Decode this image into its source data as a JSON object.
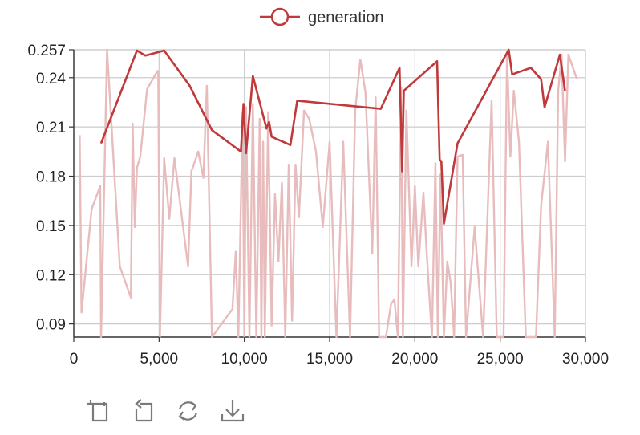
{
  "chart_data": {
    "type": "line",
    "title": "",
    "xlabel": "",
    "ylabel": "",
    "xlim": [
      0,
      30000
    ],
    "ylim": [
      0.082,
      0.257
    ],
    "x_ticks": [
      "0",
      "5,000",
      "10,000",
      "15,000",
      "20,000",
      "25,000",
      "30,000"
    ],
    "y_ticks": [
      "0.09",
      "0.12",
      "0.15",
      "0.18",
      "0.21",
      "0.24",
      "0.257"
    ],
    "legend": {
      "position": "top-center",
      "entries": [
        "generation"
      ]
    },
    "grid": true,
    "series": [
      {
        "name": "generation",
        "role": "smoothed",
        "color": "#c0393b",
        "x": [
          1600,
          3700,
          4200,
          5300,
          6800,
          8100,
          9800,
          9950,
          10100,
          10500,
          11300,
          11450,
          11600,
          12700,
          13100,
          18000,
          19100,
          19250,
          19350,
          21300,
          21450,
          21550,
          21700,
          22500,
          25500,
          25700,
          26800,
          27400,
          27600,
          28500,
          28800
        ],
        "y": [
          0.2,
          0.2565,
          0.2535,
          0.2565,
          0.235,
          0.208,
          0.195,
          0.224,
          0.194,
          0.241,
          0.209,
          0.213,
          0.204,
          0.199,
          0.226,
          0.221,
          0.246,
          0.183,
          0.232,
          0.25,
          0.19,
          0.189,
          0.151,
          0.2,
          0.2575,
          0.242,
          0.246,
          0.239,
          0.222,
          0.254,
          0.232
        ]
      },
      {
        "name": "generation",
        "role": "raw",
        "color": "#e8bcbd",
        "x": [
          350,
          450,
          1050,
          1550,
          1600,
          1950,
          2700,
          3350,
          3450,
          3580,
          3700,
          3900,
          4300,
          4900,
          4950,
          5050,
          5300,
          5600,
          5900,
          6700,
          6900,
          7300,
          7600,
          7800,
          8100,
          9300,
          9500,
          9650,
          9900,
          10000,
          10100,
          10300,
          10500,
          10700,
          10900,
          11000,
          11100,
          11200,
          11400,
          11600,
          11800,
          12000,
          12200,
          12400,
          12600,
          12800,
          13000,
          13200,
          13500,
          13800,
          14200,
          14600,
          15000,
          15400,
          15800,
          16200,
          16500,
          16800,
          17100,
          17500,
          17700,
          17900,
          18300,
          18600,
          18800,
          19000,
          19200,
          19300,
          19500,
          19800,
          20000,
          20200,
          20500,
          20700,
          21000,
          21200,
          21350,
          21500,
          21700,
          21900,
          22100,
          22300,
          22500,
          22800,
          23000,
          23500,
          24000,
          24500,
          24800,
          25200,
          25400,
          25600,
          25800,
          26100,
          26500,
          26800,
          27100,
          27400,
          27800,
          28200,
          28400,
          28600,
          28800,
          29000,
          29500
        ],
        "y": [
          0.205,
          0.097,
          0.16,
          0.174,
          0.082,
          0.257,
          0.125,
          0.106,
          0.212,
          0.149,
          0.185,
          0.192,
          0.233,
          0.244,
          0.244,
          0.082,
          0.191,
          0.154,
          0.191,
          0.125,
          0.183,
          0.195,
          0.179,
          0.235,
          0.082,
          0.099,
          0.134,
          0.082,
          0.219,
          0.082,
          0.222,
          0.082,
          0.224,
          0.082,
          0.215,
          0.082,
          0.201,
          0.082,
          0.219,
          0.089,
          0.169,
          0.128,
          0.176,
          0.082,
          0.187,
          0.092,
          0.187,
          0.155,
          0.22,
          0.215,
          0.195,
          0.149,
          0.201,
          0.082,
          0.201,
          0.082,
          0.22,
          0.251,
          0.231,
          0.133,
          0.228,
          0.082,
          0.082,
          0.102,
          0.105,
          0.082,
          0.234,
          0.082,
          0.22,
          0.125,
          0.174,
          0.125,
          0.17,
          0.132,
          0.082,
          0.188,
          0.082,
          0.181,
          0.082,
          0.128,
          0.115,
          0.082,
          0.192,
          0.193,
          0.082,
          0.149,
          0.082,
          0.226,
          0.082,
          0.082,
          0.254,
          0.192,
          0.232,
          0.201,
          0.082,
          0.082,
          0.082,
          0.162,
          0.201,
          0.082,
          0.232,
          0.254,
          0.189,
          0.254,
          0.239
        ]
      }
    ]
  }
}
